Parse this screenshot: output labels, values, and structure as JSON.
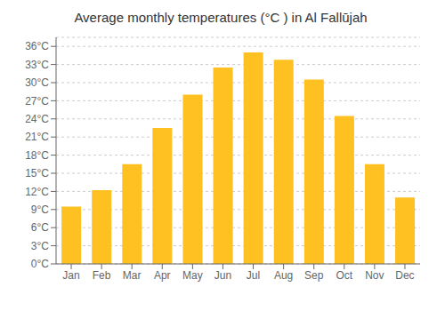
{
  "chart_data": {
    "type": "bar",
    "title": "Average monthly temperatures (°C ) in Al Fallūjah",
    "categories": [
      "Jan",
      "Feb",
      "Mar",
      "Apr",
      "May",
      "Jun",
      "Jul",
      "Aug",
      "Sep",
      "Oct",
      "Nov",
      "Dec"
    ],
    "values": [
      9.5,
      12.2,
      16.5,
      22.5,
      28.0,
      32.5,
      35.0,
      33.8,
      30.5,
      24.5,
      16.5,
      11.0
    ],
    "color": "#FFC022",
    "ylim": [
      0,
      37.5
    ],
    "yticks": [
      {
        "value": 0,
        "label": "0°C"
      },
      {
        "value": 3,
        "label": "3°C"
      },
      {
        "value": 6,
        "label": "6°C"
      },
      {
        "value": 9,
        "label": "9°C"
      },
      {
        "value": 12,
        "label": "12°C"
      },
      {
        "value": 15,
        "label": "15°C"
      },
      {
        "value": 18,
        "label": "18°C"
      },
      {
        "value": 21,
        "label": "21°C"
      },
      {
        "value": 24,
        "label": "24°C"
      },
      {
        "value": 27,
        "label": "27°C"
      },
      {
        "value": 30,
        "label": "30°C"
      },
      {
        "value": 33,
        "label": "33°C"
      },
      {
        "value": 36,
        "label": "36°C"
      }
    ],
    "grid": true
  }
}
